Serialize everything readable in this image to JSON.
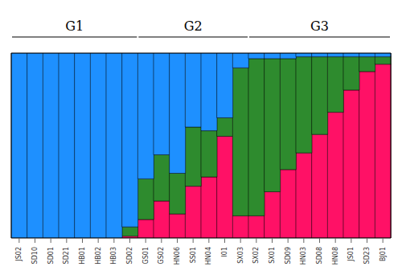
{
  "chart_data": {
    "type": "bar",
    "stacked": true,
    "categories": [
      "JS02",
      "SD10",
      "SD01",
      "SD21",
      "HB01",
      "HB02",
      "HB03",
      "SD02",
      "GS01",
      "GS02",
      "HN06",
      "SS01",
      "HN04",
      "I01",
      "SX03",
      "SX02",
      "SX01",
      "SD09",
      "HN03",
      "SD08",
      "HN08",
      "JS01",
      "SD23",
      "BJ01"
    ],
    "series": [
      {
        "color": "#FF1166",
        "values": [
          0.0,
          0.0,
          0.0,
          0.0,
          0.0,
          0.0,
          0.0,
          0.01,
          0.1,
          0.2,
          0.13,
          0.28,
          0.33,
          0.55,
          0.12,
          0.12,
          0.25,
          0.37,
          0.46,
          0.56,
          0.68,
          0.8,
          0.9,
          0.94
        ]
      },
      {
        "color": "#2E8B2E",
        "values": [
          0.0,
          0.0,
          0.0,
          0.0,
          0.0,
          0.0,
          0.0,
          0.05,
          0.22,
          0.25,
          0.22,
          0.32,
          0.25,
          0.1,
          0.8,
          0.85,
          0.72,
          0.6,
          0.52,
          0.42,
          0.3,
          0.18,
          0.08,
          0.04
        ]
      },
      {
        "color": "#1E90FF",
        "values": [
          1.0,
          1.0,
          1.0,
          1.0,
          1.0,
          1.0,
          1.0,
          0.94,
          0.68,
          0.55,
          0.65,
          0.4,
          0.42,
          0.35,
          0.08,
          0.03,
          0.03,
          0.03,
          0.02,
          0.02,
          0.02,
          0.02,
          0.02,
          0.02
        ]
      }
    ],
    "ylim": [
      0,
      1
    ],
    "tick_labels": "x",
    "grid": false,
    "groups": [
      {
        "label": "G1",
        "first": "JS02",
        "last": "SD02"
      },
      {
        "label": "G2",
        "first": "GS01",
        "last": "SX03"
      },
      {
        "label": "G3",
        "first": "SX02",
        "last": "BJ01"
      }
    ]
  }
}
